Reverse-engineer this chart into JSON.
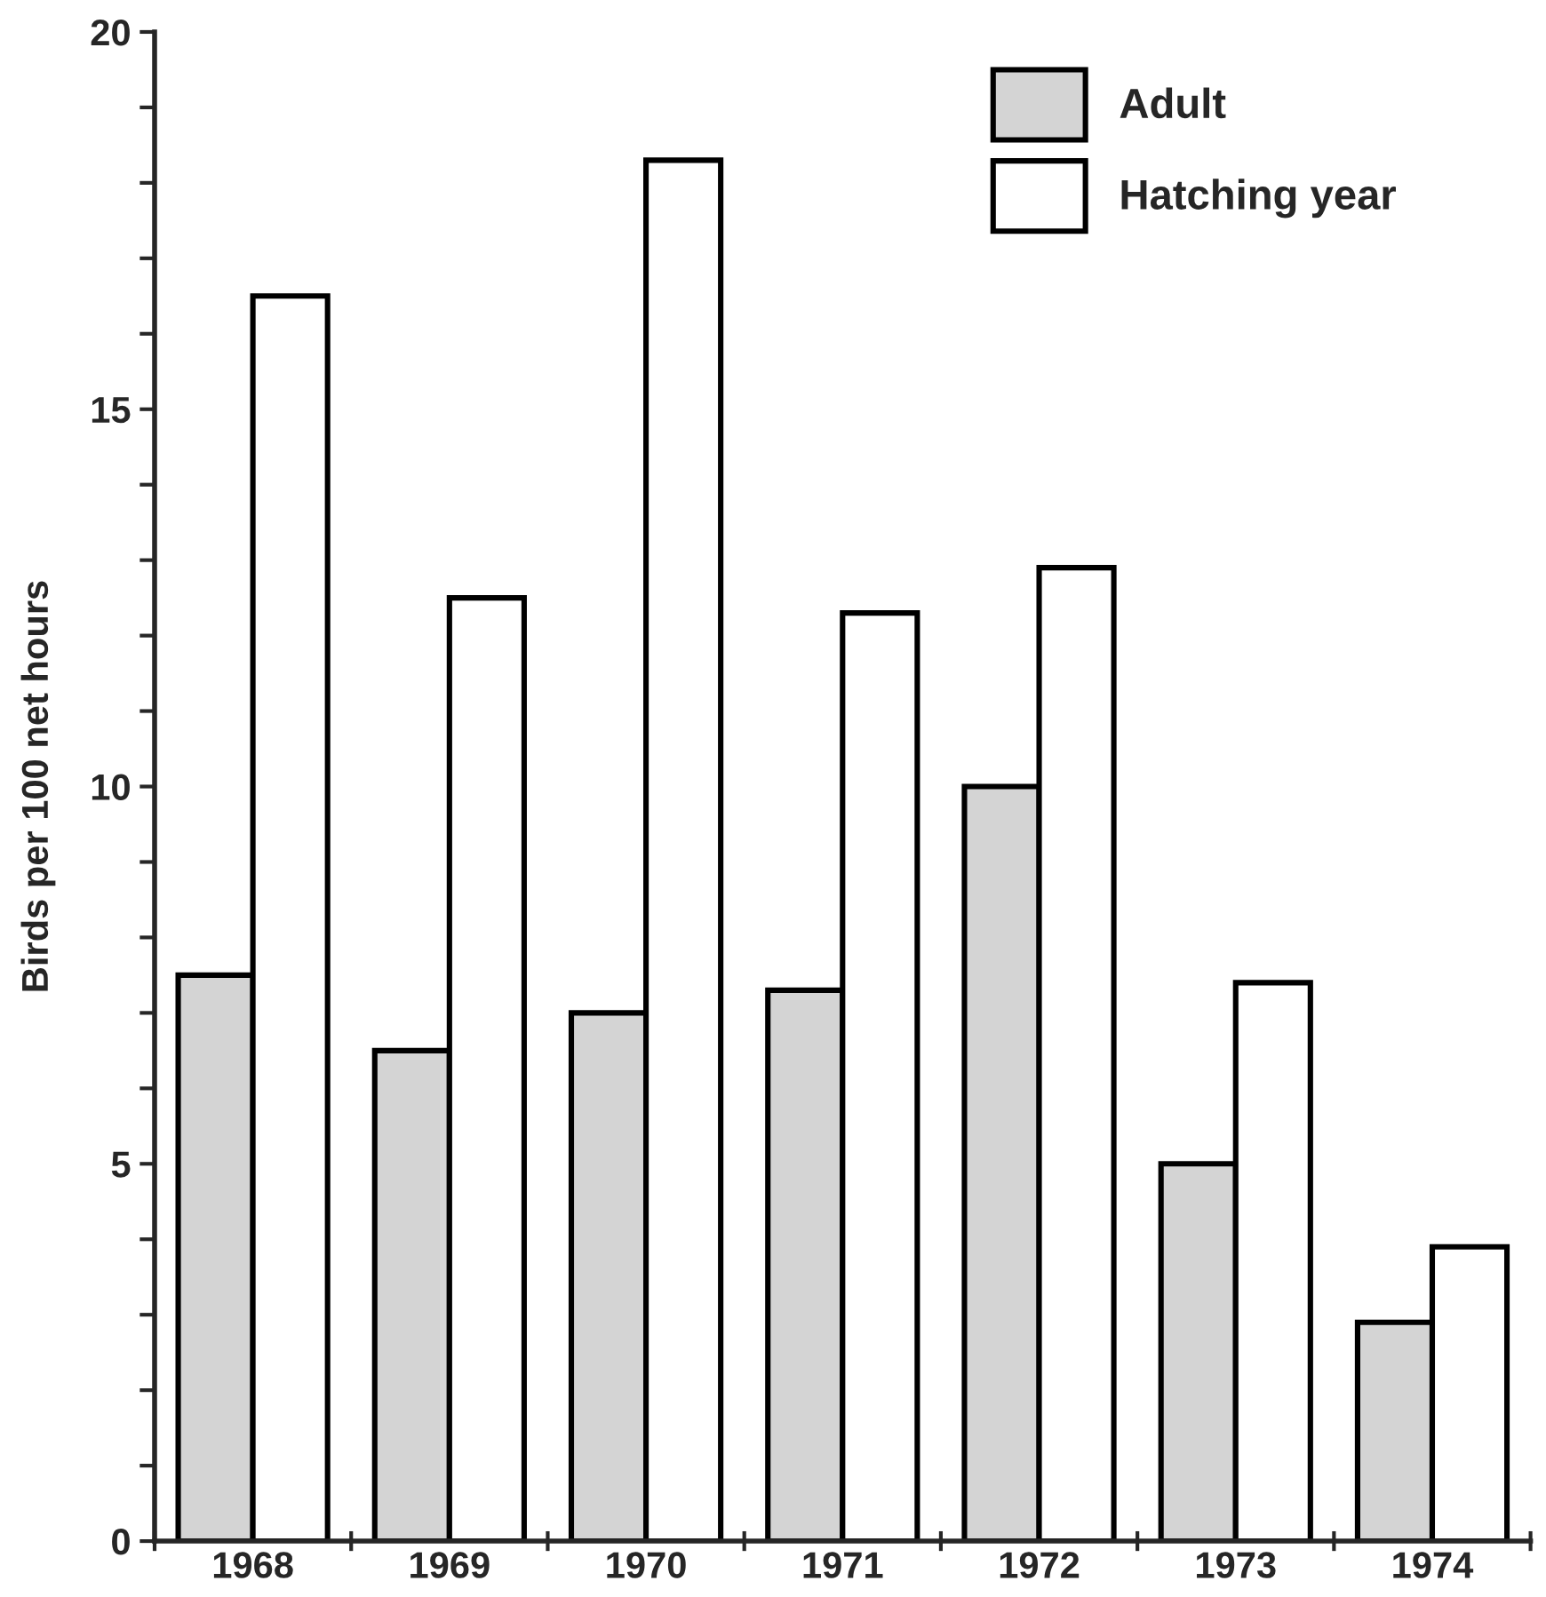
{
  "chart_data": {
    "type": "bar",
    "ylabel": "Birds per 100 net hours",
    "categories": [
      "1968",
      "1969",
      "1970",
      "1971",
      "1972",
      "1973",
      "1974"
    ],
    "series": [
      {
        "name": "Adult",
        "color": "#d4d4d4",
        "values": [
          7.5,
          6.5,
          7.0,
          7.3,
          10.0,
          5.0,
          2.9
        ]
      },
      {
        "name": "Hatching year",
        "color": "#ffffff",
        "values": [
          16.5,
          12.5,
          18.3,
          12.3,
          12.9,
          7.4,
          3.9
        ]
      }
    ],
    "ylim": [
      0,
      20
    ],
    "yticks": [
      0,
      {
        "value": 1,
        "label": null
      },
      {
        "value": 2,
        "label": null
      },
      {
        "value": 3,
        "label": null
      },
      {
        "value": 4,
        "label": null
      },
      5,
      {
        "value": 6,
        "label": null
      },
      {
        "value": 7,
        "label": null
      },
      {
        "value": 8,
        "label": null
      },
      {
        "value": 9,
        "label": null
      },
      10,
      {
        "value": 11,
        "label": null
      },
      {
        "value": 12,
        "label": null
      },
      {
        "value": 13,
        "label": null
      },
      {
        "value": 14,
        "label": null
      },
      15,
      {
        "value": 16,
        "label": null
      },
      {
        "value": 17,
        "label": null
      },
      {
        "value": 18,
        "label": null
      },
      {
        "value": 19,
        "label": null
      },
      20
    ],
    "grid": false,
    "legend": "top right"
  }
}
